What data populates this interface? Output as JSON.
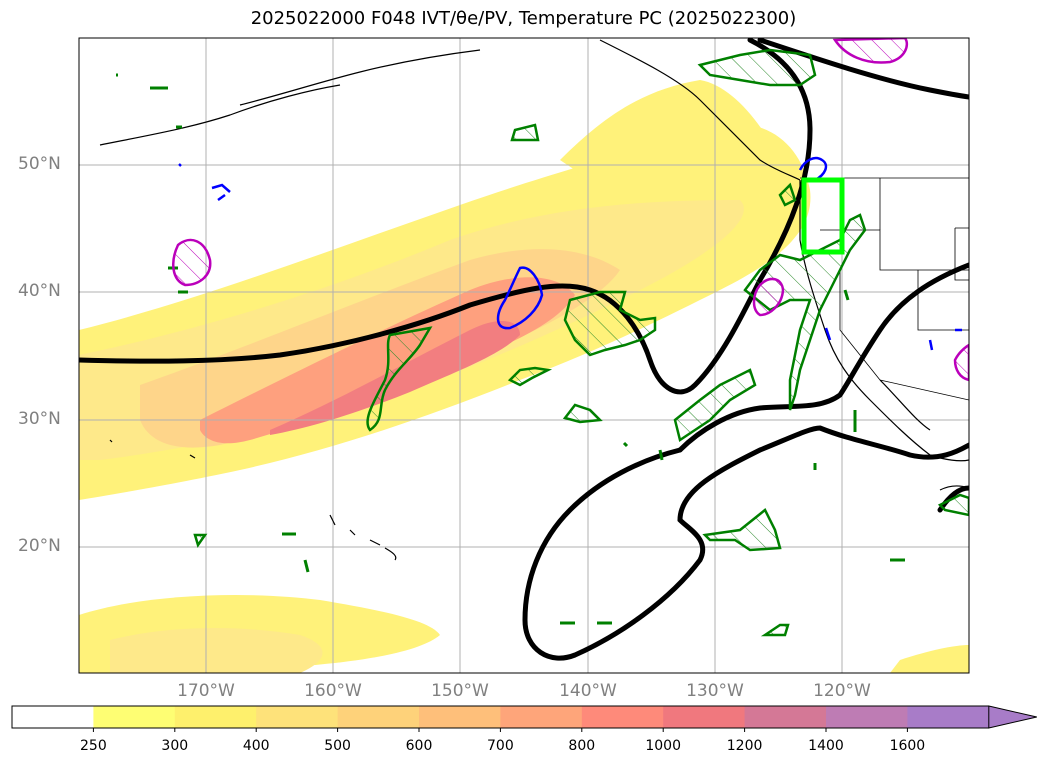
{
  "title": "2025022000 F048 IVT/θe/PV, Temperature PC (2025022300)",
  "lat_labels": [
    "50°N",
    "40°N",
    "30°N",
    "20°N"
  ],
  "lon_labels": [
    "170°W",
    "160°W",
    "150°W",
    "140°W",
    "130°W",
    "120°W"
  ],
  "colorbar": {
    "ticks": [
      "250",
      "300",
      "400",
      "500",
      "600",
      "700",
      "800",
      "1000",
      "1200",
      "1400",
      "1600"
    ],
    "colors": [
      "#ffffff",
      "#fefe73",
      "#fef06c",
      "#fee27a",
      "#fed27a",
      "#febf7a",
      "#fea57a",
      "#fe8a7a",
      "#f0787e",
      "#d47896",
      "#be7cb4",
      "#a87cc8"
    ],
    "extend": "max"
  },
  "map_colors": {
    "ivt_light": "#fff27a",
    "ivt_mid": "#fed58a",
    "ivt_dark": "#fea07e",
    "ivt_core": "#f27e80",
    "thetae": "#000000",
    "pv_pos": "#008000",
    "pv_neg": "#0000ff",
    "temp_pc": "#bb00bb",
    "target_box": "#00ff00"
  }
}
